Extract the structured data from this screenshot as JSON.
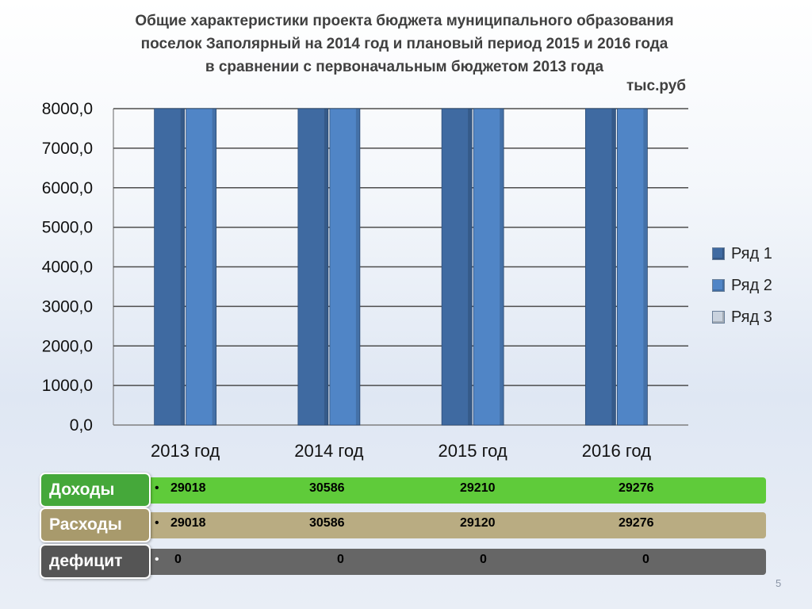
{
  "title": "Общие характеристики проекта бюджета муниципального образования\nпоселок Заполярный на 2014 год и плановый период 2015 и 2016 года\nв сравнении с первоначальным бюджетом 2013 года",
  "title_lines": [
    "Общие характеристики проекта бюджета муниципального образования",
    "поселок Заполярный на 2014 год и плановый период 2015 и 2016 года",
    "в сравнении с первоначальным бюджетом 2013 года"
  ],
  "unit_label": "тыс.руб",
  "chart_data": {
    "type": "bar",
    "categories": [
      "2013 год",
      "2014 год",
      "2015 год",
      "2016 год"
    ],
    "series": [
      {
        "name": "Ряд 1",
        "values": [
          29018,
          30586,
          29210,
          29276
        ],
        "color": "#3f6aa1"
      },
      {
        "name": "Ряд 2",
        "values": [
          29018,
          30586,
          29120,
          29276
        ],
        "color": "#5085c6"
      },
      {
        "name": "Ряд 3",
        "values": [
          0,
          0,
          0,
          0
        ],
        "color": "#c9d2de"
      }
    ],
    "ylim": [
      0,
      8000
    ],
    "yticks": [
      "0,0",
      "1000,0",
      "2000,0",
      "3000,0",
      "4000,0",
      "5000,0",
      "6000,0",
      "7000,0",
      "8000,0"
    ],
    "ytick_values": [
      0,
      1000,
      2000,
      3000,
      4000,
      5000,
      6000,
      7000,
      8000
    ],
    "grid": true,
    "legend": "right"
  },
  "table_rows": [
    {
      "label": "Доходы",
      "bullet": "•",
      "values": [
        "29018",
        "30586",
        "29210",
        "29276"
      ],
      "label_bg": "#45a83a",
      "bar_bg": "#5fcb3a"
    },
    {
      "label": "Расходы",
      "bullet": "•",
      "values": [
        "29018",
        "30586",
        "29120",
        "29276"
      ],
      "label_bg": "#a89a6c",
      "bar_bg": "#b9ac82"
    },
    {
      "label": "дефицит",
      "bullet": "•",
      "values": [
        "0",
        "0",
        "0",
        "0"
      ],
      "label_bg": "#555555",
      "bar_bg": "#666666"
    }
  ],
  "page_number": "5"
}
